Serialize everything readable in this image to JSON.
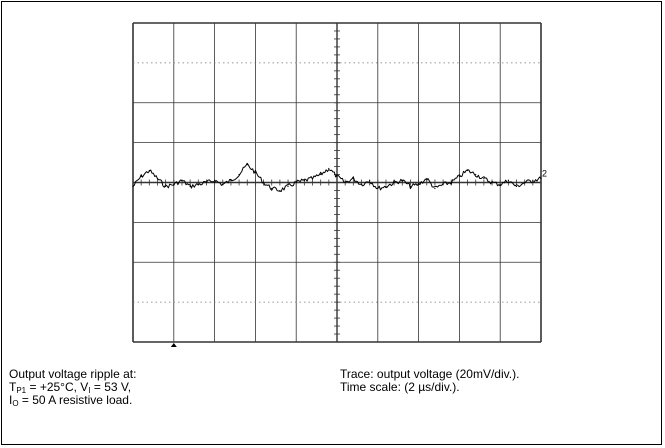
{
  "chart_data": {
    "type": "line",
    "title": "",
    "xlabel": "",
    "ylabel": "",
    "grid": true,
    "x_divisions": 10,
    "y_divisions": 8,
    "x_per_div": "2 µs",
    "y_per_div": "20 mV",
    "xlim_us": [
      0,
      20
    ],
    "ylim_mv": [
      -80,
      80
    ],
    "channel_marker": "2",
    "series": [
      {
        "x_us": [
          0.0,
          0.4,
          0.8,
          1.2,
          1.6,
          2.0,
          2.4,
          2.8,
          3.2,
          3.6,
          4.0,
          4.4,
          4.8,
          5.2,
          5.6,
          6.0,
          6.4,
          6.8,
          7.2,
          7.6,
          8.0,
          8.4,
          8.8,
          9.2,
          9.6,
          10.0,
          10.4,
          10.8,
          11.2,
          11.6,
          12.0,
          12.4,
          12.8,
          13.2,
          13.6,
          14.0,
          14.4,
          14.8,
          15.2,
          15.6,
          16.0,
          16.4,
          16.8,
          17.2,
          17.6,
          18.0,
          18.4,
          18.8,
          19.2,
          19.6,
          20.0
        ],
        "y_mv": [
          -2,
          3,
          6,
          2,
          -2,
          -1,
          1,
          -2,
          -1,
          0,
          1,
          -1,
          1,
          4,
          9,
          5,
          0,
          -3,
          -4,
          -2,
          0,
          1,
          2,
          4,
          7,
          3,
          0,
          2,
          -1,
          1,
          -3,
          -2,
          0,
          1,
          -2,
          -1,
          2,
          -3,
          -1,
          0,
          3,
          6,
          4,
          2,
          0,
          -1,
          1,
          -2,
          0,
          1,
          2
        ]
      }
    ]
  },
  "caption_left": {
    "line1": "Output voltage ripple  at:",
    "line2_T": "T",
    "line2_Tsub": "P1",
    "line2_a": " = +25°C, V",
    "line2_Vsub": "I",
    "line2_b": " = 53 V,",
    "line3_I": "I",
    "line3_Isub": "O",
    "line3_rest": " = 50 A resistive load."
  },
  "caption_right": {
    "line1": "Trace: output voltage (20mV/div.).",
    "line2": "Time scale: (2 µs/div.)."
  }
}
